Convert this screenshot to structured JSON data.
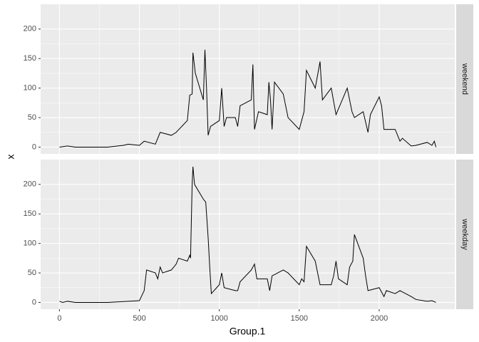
{
  "chart_data": {
    "type": "line",
    "x_label": "Group.1",
    "y_label": "x",
    "color": "#000000",
    "grid": true,
    "xlim": [
      -117.75,
      2472.75
    ],
    "xticks": [
      0,
      500,
      1000,
      1500,
      2000
    ],
    "ylim": [
      -11.5,
      242
    ],
    "yticks": [
      0,
      50,
      100,
      150,
      200
    ],
    "panels": [
      {
        "name": "weekend",
        "x": [
          0,
          50,
          100,
          200,
          300,
          400,
          430,
          500,
          530,
          600,
          630,
          700,
          730,
          800,
          815,
          830,
          835,
          850,
          900,
          910,
          920,
          930,
          945,
          1000,
          1015,
          1030,
          1045,
          1100,
          1115,
          1130,
          1200,
          1210,
          1220,
          1245,
          1300,
          1310,
          1320,
          1330,
          1345,
          1400,
          1430,
          1500,
          1530,
          1545,
          1600,
          1630,
          1645,
          1700,
          1730,
          1800,
          1830,
          1845,
          1900,
          1930,
          1945,
          2000,
          2015,
          2030,
          2100,
          2130,
          2145,
          2200,
          2230,
          2300,
          2330,
          2345,
          2355
        ],
        "values": [
          0,
          2,
          0,
          0,
          0,
          3,
          5,
          3,
          10,
          5,
          25,
          20,
          25,
          45,
          88,
          90,
          160,
          125,
          80,
          165,
          100,
          20,
          35,
          45,
          100,
          35,
          50,
          50,
          35,
          70,
          80,
          140,
          30,
          60,
          55,
          110,
          80,
          30,
          110,
          90,
          50,
          30,
          60,
          130,
          100,
          145,
          80,
          100,
          55,
          100,
          60,
          50,
          60,
          25,
          55,
          85,
          70,
          30,
          30,
          10,
          15,
          2,
          3,
          8,
          3,
          10,
          0
        ]
      },
      {
        "name": "weekday",
        "x": [
          0,
          20,
          50,
          100,
          300,
          430,
          500,
          530,
          545,
          600,
          615,
          630,
          645,
          700,
          730,
          745,
          800,
          815,
          820,
          830,
          835,
          845,
          900,
          915,
          930,
          940,
          950,
          1000,
          1015,
          1030,
          1100,
          1115,
          1130,
          1200,
          1220,
          1235,
          1300,
          1315,
          1330,
          1400,
          1430,
          1500,
          1515,
          1530,
          1545,
          1600,
          1630,
          1700,
          1715,
          1730,
          1745,
          1800,
          1815,
          1835,
          1845,
          1900,
          1915,
          1930,
          2000,
          2030,
          2045,
          2100,
          2130,
          2200,
          2230,
          2300,
          2330,
          2355
        ],
        "values": [
          2,
          0,
          2,
          0,
          0,
          2,
          3,
          20,
          55,
          50,
          40,
          60,
          50,
          55,
          65,
          75,
          70,
          80,
          75,
          200,
          230,
          200,
          175,
          170,
          110,
          60,
          15,
          30,
          50,
          25,
          20,
          20,
          35,
          55,
          65,
          40,
          40,
          20,
          45,
          55,
          50,
          30,
          40,
          35,
          95,
          70,
          30,
          30,
          45,
          70,
          40,
          30,
          60,
          70,
          115,
          75,
          45,
          20,
          25,
          10,
          20,
          15,
          20,
          10,
          5,
          2,
          3,
          0
        ]
      }
    ]
  }
}
